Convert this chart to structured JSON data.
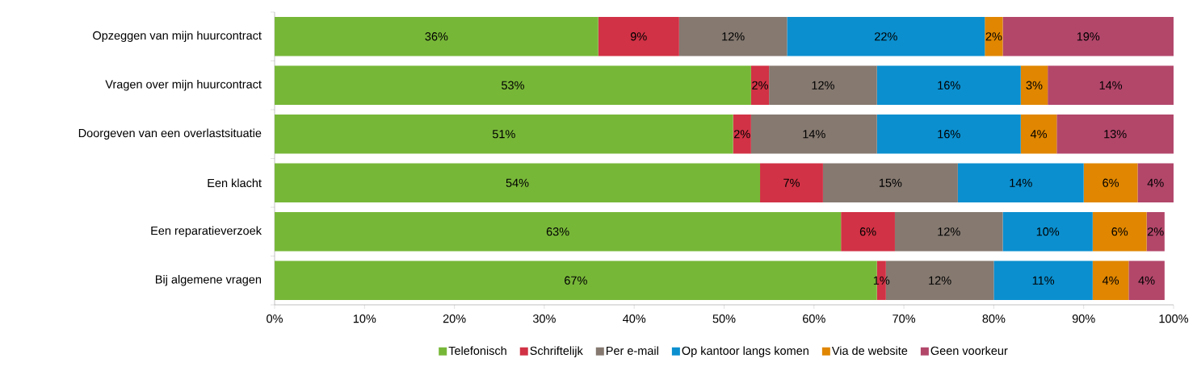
{
  "chart_data": {
    "type": "bar",
    "orientation": "horizontal",
    "stacked": true,
    "legend": "bottom",
    "categories": [
      "Opzeggen van mijn huurcontract",
      "Vragen over mijn huurcontract",
      "Doorgeven van een overlastsituatie",
      "Een klacht",
      "Een reparatieverzoek",
      "Bij algemene vragen"
    ],
    "xlim": [
      0,
      100
    ],
    "xticks": [
      {
        "value": 0,
        "label": "0%"
      },
      {
        "value": 10,
        "label": "10%"
      },
      {
        "value": 20,
        "label": "20%"
      },
      {
        "value": 30,
        "label": "30%"
      },
      {
        "value": 40,
        "label": "40%"
      },
      {
        "value": 50,
        "label": "50%"
      },
      {
        "value": 60,
        "label": "60%"
      },
      {
        "value": 70,
        "label": "70%"
      },
      {
        "value": 80,
        "label": "80%"
      },
      {
        "value": 90,
        "label": "90%"
      },
      {
        "value": 100,
        "label": "100%"
      }
    ],
    "series": [
      {
        "name": "Telefonisch",
        "color": "#77b738",
        "values": [
          36,
          53,
          51,
          54,
          63,
          67
        ],
        "value_labels": [
          "36%",
          "53%",
          "51%",
          "54%",
          "63%",
          "67%"
        ]
      },
      {
        "name": "Schriftelijk",
        "color": "#d13245",
        "values": [
          9,
          2,
          2,
          7,
          6,
          1
        ],
        "value_labels": [
          "9%",
          "2%",
          "2%",
          "7%",
          "6%",
          "1%"
        ]
      },
      {
        "name": "Per e-mail",
        "color": "#857970",
        "values": [
          12,
          12,
          14,
          15,
          12,
          12
        ],
        "value_labels": [
          "12%",
          "12%",
          "14%",
          "15%",
          "12%",
          "12%"
        ]
      },
      {
        "name": "Op kantoor langs komen",
        "color": "#0b8fcf",
        "values": [
          22,
          16,
          16,
          14,
          10,
          11
        ],
        "value_labels": [
          "22%",
          "16%",
          "16%",
          "14%",
          "10%",
          "11%"
        ]
      },
      {
        "name": "Via de website",
        "color": "#e08600",
        "values": [
          2,
          3,
          4,
          6,
          6,
          4
        ],
        "value_labels": [
          "2%",
          "3%",
          "4%",
          "6%",
          "6%",
          "4%"
        ]
      },
      {
        "name": "Geen voorkeur",
        "color": "#b2476a",
        "values": [
          19,
          14,
          13,
          4,
          2,
          4
        ],
        "value_labels": [
          "19%",
          "14%",
          "13%",
          "4%",
          "2%",
          "4%"
        ]
      }
    ]
  }
}
